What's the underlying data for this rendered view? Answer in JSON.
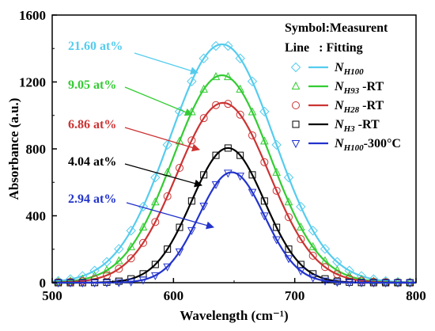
{
  "chart_data": {
    "type": "line",
    "xlabel": "Wavelength (cm⁻¹)",
    "ylabel": "Absorbance (a.u.)",
    "xlim": [
      500,
      800
    ],
    "ylim": [
      0,
      1600
    ],
    "x_ticks": [
      500,
      600,
      700,
      800
    ],
    "y_ticks": [
      0,
      400,
      800,
      1200,
      1600
    ],
    "legend": {
      "header1": "Symbol:Measurent",
      "header2": "Line   : Fitting",
      "placement": "top-right"
    },
    "series": [
      {
        "label_main": "N",
        "label_sub": "H100",
        "label_suffix": "",
        "color": "#55ccee",
        "marker": "diamond",
        "fit": {
          "center": 640,
          "amplitude": 1425,
          "sigma": 43
        },
        "points": {
          "x_start": 505,
          "x_end": 795,
          "x_step": 10
        },
        "annotation": {
          "text": "21.60 at%",
          "color": "#55ccee"
        }
      },
      {
        "label_main": "N",
        "label_sub": "H93",
        "label_suffix": " -RT",
        "color": "#33cc33",
        "marker": "triangle-up",
        "fit": {
          "center": 640,
          "amplitude": 1240,
          "sigma": 40
        },
        "points": {
          "x_start": 505,
          "x_end": 795,
          "x_step": 10
        },
        "annotation": {
          "text": "9.05 at%",
          "color": "#33cc33"
        }
      },
      {
        "label_main": "N",
        "label_sub": "H28",
        "label_suffix": " -RT",
        "color": "#cc3333",
        "marker": "circle",
        "fit": {
          "center": 641,
          "amplitude": 1075,
          "sigma": 38
        },
        "points": {
          "x_start": 505,
          "x_end": 795,
          "x_step": 10
        },
        "annotation": {
          "text": "6.86 at%",
          "color": "#cc3333"
        }
      },
      {
        "label_main": "N",
        "label_sub": "H3",
        "label_suffix": " -RT",
        "color": "#000000",
        "marker": "square",
        "fit": {
          "center": 645,
          "amplitude": 805,
          "sigma": 30
        },
        "points": {
          "x_start": 505,
          "x_end": 795,
          "x_step": 10
        },
        "annotation": {
          "text": "4.04 at%",
          "color": "#000000"
        }
      },
      {
        "label_main": "N",
        "label_sub": "H100",
        "label_suffix": "-300°C",
        "color": "#2233cc",
        "marker": "triangle-down",
        "fit": {
          "center": 648,
          "amplitude": 660,
          "sigma": 27
        },
        "points": {
          "x_start": 505,
          "x_end": 795,
          "x_step": 10
        },
        "annotation": {
          "text": "2.94 at%",
          "color": "#2233cc"
        }
      }
    ]
  }
}
